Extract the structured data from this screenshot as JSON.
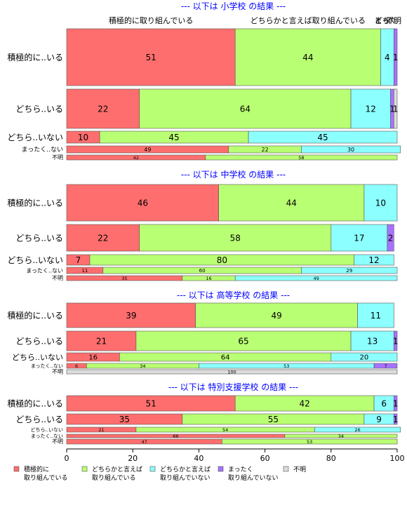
{
  "chart_data": {
    "type": "bar",
    "orientation": "horizontal",
    "stacked": true,
    "xlim": [
      0,
      100
    ],
    "x_ticks": [
      0,
      20,
      40,
      60,
      80,
      100
    ],
    "top_headers": [
      "積極的に取り組んでいる",
      "どちらかと言えば取り組んでいる",
      "どち",
      "まった",
      "不明"
    ],
    "row_labels": [
      "積極的に..いる",
      "どちら..いる",
      "どちら..いない",
      "まったく..ない",
      "不明"
    ],
    "legend": [
      {
        "line1": "積極的に",
        "line2": "取り組んでいる",
        "color": "#ff6e6e"
      },
      {
        "line1": "どちらかと言えば",
        "line2": "取り組んでいる",
        "color": "#b9ff73"
      },
      {
        "line1": "どちらかと言えば",
        "line2": "取り組んでいない",
        "color": "#8cffff"
      },
      {
        "line1": "まったく",
        "line2": "取り組んでいない",
        "color": "#a772ff"
      },
      {
        "line1": "不明",
        "line2": "",
        "color": "#dcdcdc"
      }
    ],
    "panels": [
      {
        "title": "--- 以下は 小学校 の結果 ---",
        "rows": [
          {
            "values": [
              51,
              44,
              4,
              1,
              0
            ]
          },
          {
            "values": [
              22,
              64,
              12,
              1,
              1
            ]
          },
          {
            "values": [
              10,
              45,
              45,
              0,
              0
            ]
          },
          {
            "values": [
              49,
              22,
              30,
              0,
              0
            ]
          },
          {
            "values": [
              42,
              58,
              0,
              0,
              0
            ]
          }
        ]
      },
      {
        "title": "--- 以下は 中学校 の結果 ---",
        "rows": [
          {
            "values": [
              46,
              44,
              10,
              0,
              0
            ]
          },
          {
            "values": [
              22,
              58,
              17,
              2,
              0
            ]
          },
          {
            "values": [
              7,
              80,
              12,
              0,
              0
            ]
          },
          {
            "values": [
              11,
              60,
              29,
              0,
              0
            ]
          },
          {
            "values": [
              35,
              16,
              49,
              0,
              0
            ]
          }
        ]
      },
      {
        "title": "--- 以下は 高等学校 の結果 ---",
        "rows": [
          {
            "values": [
              39,
              49,
              11,
              0,
              0
            ]
          },
          {
            "values": [
              21,
              65,
              13,
              1,
              0
            ]
          },
          {
            "values": [
              16,
              64,
              20,
              0,
              0
            ]
          },
          {
            "values": [
              6,
              34,
              53,
              7,
              0
            ]
          },
          {
            "values": [
              0,
              0,
              0,
              0,
              100
            ]
          }
        ]
      },
      {
        "title": "--- 以下は 特別支援学校 の結果 ---",
        "rows": [
          {
            "values": [
              51,
              42,
              6,
              1,
              0
            ]
          },
          {
            "values": [
              35,
              55,
              9,
              1,
              0
            ]
          },
          {
            "values": [
              21,
              54,
              26,
              0,
              0
            ]
          },
          {
            "values": [
              66,
              34,
              0,
              0,
              0
            ]
          },
          {
            "values": [
              47,
              53,
              0,
              0,
              0
            ]
          }
        ]
      }
    ]
  }
}
